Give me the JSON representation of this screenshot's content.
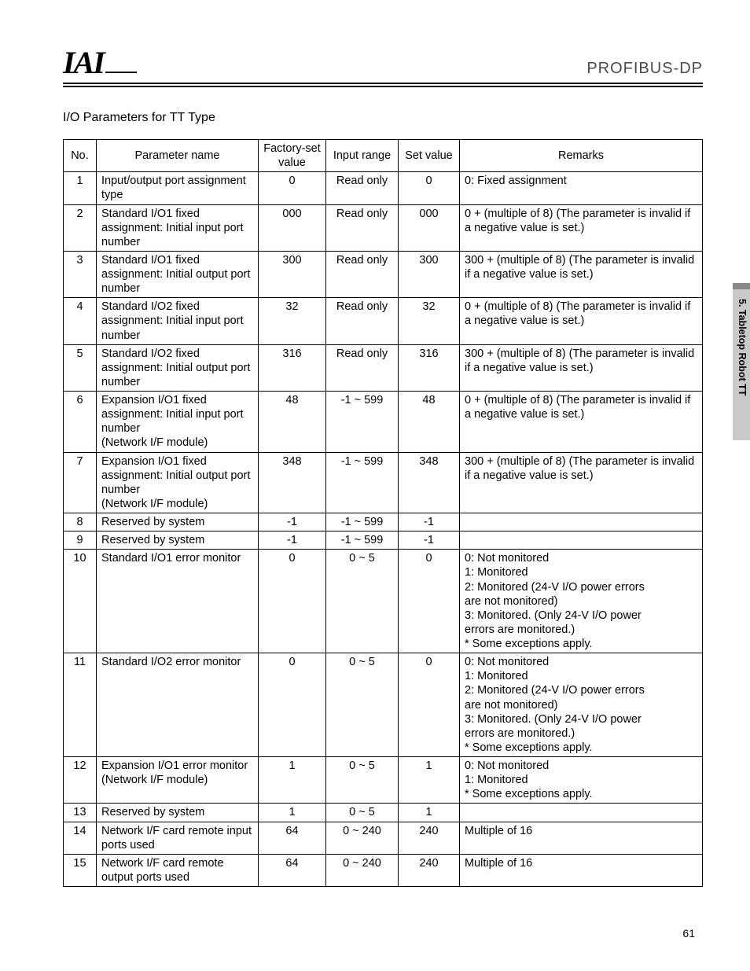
{
  "header": {
    "logo": "IAI",
    "brand": "PROFIBUS-DP"
  },
  "title": "I/O Parameters for TT Type",
  "sideTab": "5. Tabletop Robot TT",
  "pageNumber": "61",
  "table": {
    "columns": [
      "No.",
      "Parameter name",
      "Factory-set value",
      "Input range",
      "Set value",
      "Remarks"
    ],
    "rows": [
      {
        "no": "1",
        "name": "Input/output port assignment type",
        "fs": "0",
        "ir": "Read only",
        "sv": "0",
        "rm": "0: Fixed assignment"
      },
      {
        "no": "2",
        "name": "Standard I/O1 fixed assignment: Initial input port number",
        "fs": "000",
        "ir": "Read only",
        "sv": "000",
        "rm": "0 + (multiple of 8) (The parameter is invalid if a negative value is set.)"
      },
      {
        "no": "3",
        "name": "Standard I/O1 fixed assignment: Initial output port number",
        "fs": "300",
        "ir": "Read only",
        "sv": "300",
        "rm": "300 + (multiple of 8) (The parameter is invalid if a negative value is set.)"
      },
      {
        "no": "4",
        "name": "Standard I/O2 fixed assignment: Initial input port number",
        "fs": "32",
        "ir": "Read only",
        "sv": "32",
        "rm": "0 + (multiple of 8) (The parameter is invalid if a negative value is set.)"
      },
      {
        "no": "5",
        "name": "Standard I/O2 fixed assignment: Initial output port number",
        "fs": "316",
        "ir": "Read only",
        "sv": "316",
        "rm": "300 + (multiple of 8) (The parameter is invalid if a negative value is set.)"
      },
      {
        "no": "6",
        "name": "Expansion I/O1 fixed assignment: Initial input port number\n(Network I/F module)",
        "fs": "48",
        "ir": "-1 ~ 599",
        "sv": "48",
        "rm": "0 + (multiple of 8) (The parameter is invalid if a negative value is set.)"
      },
      {
        "no": "7",
        "name": "Expansion I/O1 fixed assignment: Initial output port number\n(Network I/F module)",
        "fs": "348",
        "ir": "-1 ~ 599",
        "sv": "348",
        "rm": "300 + (multiple of 8) (The parameter is invalid if a negative value is set.)"
      },
      {
        "no": "8",
        "name": "Reserved by system",
        "fs": "-1",
        "ir": "-1 ~ 599",
        "sv": "-1",
        "rm": ""
      },
      {
        "no": "9",
        "name": "Reserved by system",
        "fs": "-1",
        "ir": "-1 ~ 599",
        "sv": "-1",
        "rm": ""
      },
      {
        "no": "10",
        "name": "Standard I/O1 error monitor",
        "fs": "0",
        "ir": "0 ~ 5",
        "sv": "0",
        "rm": "0:   Not monitored\n1:   Monitored\n2:   Monitored (24-V I/O power errors\n      are not monitored)\n3:   Monitored. (Only 24-V I/O power\n      errors are monitored.)\n* Some exceptions apply."
      },
      {
        "no": "11",
        "name": "Standard I/O2 error monitor",
        "fs": "0",
        "ir": "0 ~ 5",
        "sv": "0",
        "rm": "0:   Not monitored\n1:   Monitored\n2:   Monitored (24-V I/O power errors\n      are not monitored)\n3:   Monitored. (Only 24-V I/O power\n      errors are monitored.)\n* Some exceptions apply."
      },
      {
        "no": "12",
        "name": "Expansion I/O1 error monitor\n(Network I/F module)",
        "fs": "1",
        "ir": "0 ~ 5",
        "sv": "1",
        "rm": "0:   Not monitored\n1:   Monitored\n* Some exceptions apply."
      },
      {
        "no": "13",
        "name": "Reserved by system",
        "fs": "1",
        "ir": "0 ~ 5",
        "sv": "1",
        "rm": ""
      },
      {
        "no": "14",
        "name": "Network I/F card remote input ports used",
        "fs": "64",
        "ir": "0 ~ 240",
        "sv": "240",
        "rm": "Multiple of 16"
      },
      {
        "no": "15",
        "name": "Network I/F card remote output ports used",
        "fs": "64",
        "ir": "0 ~ 240",
        "sv": "240",
        "rm": "Multiple of 16"
      }
    ]
  }
}
